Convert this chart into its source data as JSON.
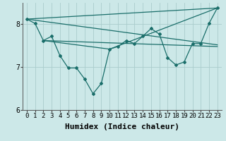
{
  "bg_color": "#cce8e8",
  "line_color": "#1a6e6a",
  "grid_color": "#aacccc",
  "xlabel": "Humidex (Indice chaleur)",
  "xlabel_fontsize": 8,
  "xlim": [
    -0.5,
    23.5
  ],
  "ylim": [
    6.0,
    8.5
  ],
  "yticks": [
    6,
    7,
    8
  ],
  "xticks": [
    0,
    1,
    2,
    3,
    4,
    5,
    6,
    7,
    8,
    9,
    10,
    11,
    12,
    13,
    14,
    15,
    16,
    17,
    18,
    19,
    20,
    21,
    22,
    23
  ],
  "main_x": [
    0,
    1,
    2,
    3,
    4,
    5,
    6,
    7,
    8,
    9,
    10,
    11,
    12,
    13,
    14,
    15,
    16,
    17,
    18,
    19,
    20,
    21,
    22,
    23
  ],
  "main_y": [
    8.12,
    8.02,
    7.62,
    7.72,
    7.27,
    6.98,
    6.98,
    6.72,
    6.38,
    6.62,
    7.42,
    7.48,
    7.62,
    7.55,
    7.72,
    7.9,
    7.77,
    7.22,
    7.05,
    7.12,
    7.55,
    7.55,
    8.02,
    8.38
  ],
  "line1_x": [
    0,
    23
  ],
  "line1_y": [
    8.12,
    8.38
  ],
  "line2_x": [
    0,
    23
  ],
  "line2_y": [
    8.12,
    7.52
  ],
  "line3_x": [
    2,
    23
  ],
  "line3_y": [
    7.62,
    7.48
  ],
  "line4_x": [
    2,
    10,
    23
  ],
  "line4_y": [
    7.62,
    7.42,
    8.38
  ]
}
